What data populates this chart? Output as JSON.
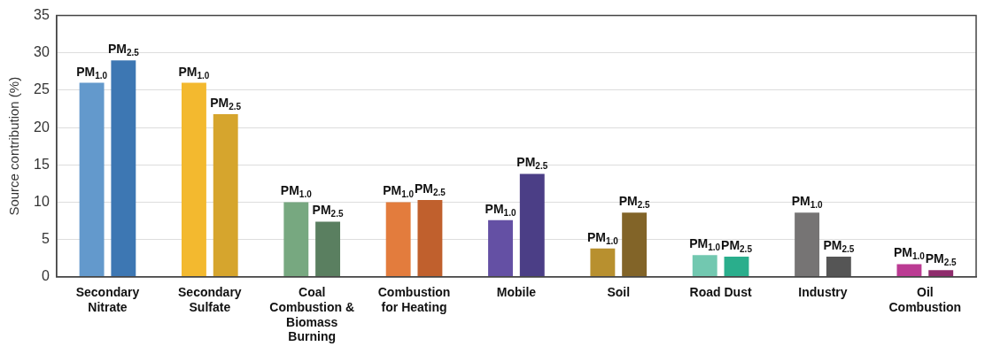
{
  "chart_data": {
    "type": "bar",
    "ylabel": "Source contribution (%)",
    "categories": [
      "Secondary Nitrate",
      "Secondary Sulfate",
      "Coal Combustion & Biomass Burning",
      "Combustion for Heating",
      "Mobile",
      "Soil",
      "Road Dust",
      "Industry",
      "Oil Combustion"
    ],
    "series": [
      {
        "name": "PM$_{1.0}$",
        "colors": [
          "#6399cc",
          "#f3b92f",
          "#77a880",
          "#e37c3d",
          "#6450a4",
          "#b8902f",
          "#72c8b0",
          "#767474",
          "#bb3b93"
        ],
        "values": [
          26,
          26,
          10,
          10,
          7.6,
          3.8,
          2.9,
          8.6,
          1.7
        ]
      },
      {
        "name": "PM$_{2.5}$",
        "colors": [
          "#3d77b3",
          "#d6a52d",
          "#5a7f60",
          "#c0602d",
          "#4b3e86",
          "#826428",
          "#2aae8c",
          "#555555",
          "#8e2c6c"
        ],
        "values": [
          29,
          21.8,
          7.4,
          10.3,
          13.8,
          8.6,
          2.7,
          2.7,
          0.9
        ]
      }
    ],
    "ylim": [
      0,
      35
    ],
    "yticks": [
      0,
      5,
      10,
      15,
      20,
      25,
      30,
      35
    ],
    "grid": "y",
    "legend": false
  }
}
